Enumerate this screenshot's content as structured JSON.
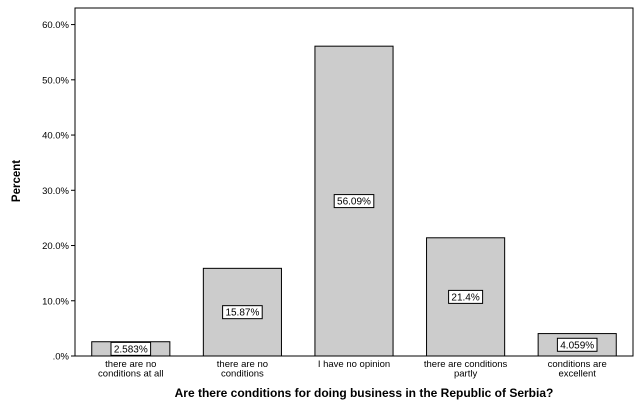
{
  "chart_data": {
    "type": "bar",
    "xlabel": "Are there conditions for doing business in the Republic of Serbia?",
    "ylabel": "Percent",
    "ylim": [
      0,
      63
    ],
    "yticks": [
      {
        "value": 0,
        "label": ".0%"
      },
      {
        "value": 10,
        "label": "10.0%"
      },
      {
        "value": 20,
        "label": "20.0%"
      },
      {
        "value": 30,
        "label": "30.0%"
      },
      {
        "value": 40,
        "label": "40.0%"
      },
      {
        "value": 50,
        "label": "50.0%"
      },
      {
        "value": 60,
        "label": "60.0%"
      }
    ],
    "categories": [
      [
        "there are no",
        "conditions at all"
      ],
      [
        "there are no",
        "conditions"
      ],
      [
        "I have no opinion"
      ],
      [
        "there are conditions",
        "partly"
      ],
      [
        "conditions are",
        "excellent"
      ]
    ],
    "values": [
      2.583,
      15.87,
      56.09,
      21.4,
      4.059
    ],
    "data_labels": [
      "2.583%",
      "15.87%",
      "56.09%",
      "21.4%",
      "4.059%"
    ],
    "grid": false,
    "bar_color": "#cccccc",
    "bar_stroke": "#000000"
  }
}
